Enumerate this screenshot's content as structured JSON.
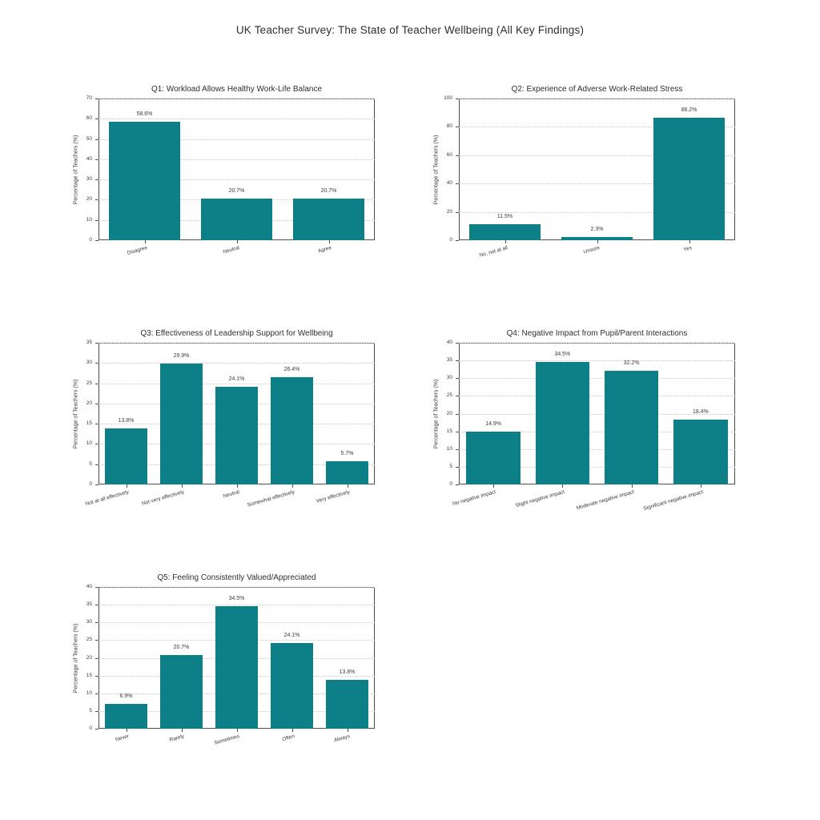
{
  "title": "UK Teacher Survey: The State of Teacher Wellbeing (All Key Findings)",
  "colors": {
    "bar": "#0c7f87",
    "axis": "#4d4d4d",
    "grid": "#c9c9c9",
    "text": "#3c3c3c"
  },
  "chart_data": [
    {
      "type": "bar",
      "title": "Q1: Workload Allows Healthy Work-Life Balance",
      "categories": [
        "Disagree",
        "Neutral",
        "Agree"
      ],
      "values": [
        58.6,
        20.7,
        20.7
      ],
      "labels": [
        "58.6%",
        "20.7%",
        "20.7%"
      ],
      "xlabel": "",
      "ylabel": "Percentage of Teachers (%)",
      "ylim": [
        0,
        70
      ],
      "yticks": [
        "0",
        "10",
        "20",
        "30",
        "40",
        "50",
        "60",
        "70"
      ],
      "grid": "horizontal-dotted",
      "legend": "none"
    },
    {
      "type": "bar",
      "title": "Q2: Experience of Adverse Work-Related Stress",
      "categories": [
        "No, not at all",
        "Unsure",
        "Yes"
      ],
      "values": [
        11.5,
        2.3,
        86.2
      ],
      "labels": [
        "11.5%",
        "2.3%",
        "86.2%"
      ],
      "xlabel": "",
      "ylabel": "Percentage of Teachers (%)",
      "ylim": [
        0,
        100
      ],
      "yticks": [
        "0",
        "20",
        "40",
        "60",
        "80",
        "100"
      ],
      "grid": "horizontal-dotted",
      "legend": "none"
    },
    {
      "type": "bar",
      "title": "Q3: Effectiveness of Leadership Support for Wellbeing",
      "categories": [
        "Not at all effectively",
        "Not very effectively",
        "Neutral",
        "Somewhat effectively",
        "Very effectively"
      ],
      "values": [
        13.8,
        29.9,
        24.1,
        26.4,
        5.7
      ],
      "labels": [
        "13.8%",
        "29.9%",
        "24.1%",
        "26.4%",
        "5.7%"
      ],
      "xlabel": "",
      "ylabel": "Percentage of Teachers (%)",
      "ylim": [
        0,
        35
      ],
      "yticks": [
        "0",
        "5",
        "10",
        "15",
        "20",
        "25",
        "30",
        "35"
      ],
      "grid": "horizontal-dotted",
      "legend": "none"
    },
    {
      "type": "bar",
      "title": "Q4: Negative Impact from Pupil/Parent Interactions",
      "categories": [
        "No negative impact",
        "Slight negative impact",
        "Moderate negative impact",
        "Significant negative impact"
      ],
      "values": [
        14.9,
        34.5,
        32.2,
        18.4
      ],
      "labels": [
        "14.9%",
        "34.5%",
        "32.2%",
        "18.4%"
      ],
      "xlabel": "",
      "ylabel": "Percentage of Teachers (%)",
      "ylim": [
        0,
        40
      ],
      "yticks": [
        "0",
        "5",
        "10",
        "15",
        "20",
        "25",
        "30",
        "35",
        "40"
      ],
      "grid": "horizontal-dotted",
      "legend": "none"
    },
    {
      "type": "bar",
      "title": "Q5: Feeling Consistently Valued/Appreciated",
      "categories": [
        "Never",
        "Rarely",
        "Sometimes",
        "Often",
        "Always"
      ],
      "values": [
        6.9,
        20.7,
        34.5,
        24.1,
        13.8
      ],
      "labels": [
        "6.9%",
        "20.7%",
        "34.5%",
        "24.1%",
        "13.8%"
      ],
      "xlabel": "",
      "ylabel": "Percentage of Teachers (%)",
      "ylim": [
        0,
        40
      ],
      "yticks": [
        "0",
        "5",
        "10",
        "15",
        "20",
        "25",
        "30",
        "35",
        "40"
      ],
      "grid": "horizontal-dotted",
      "legend": "none"
    }
  ]
}
